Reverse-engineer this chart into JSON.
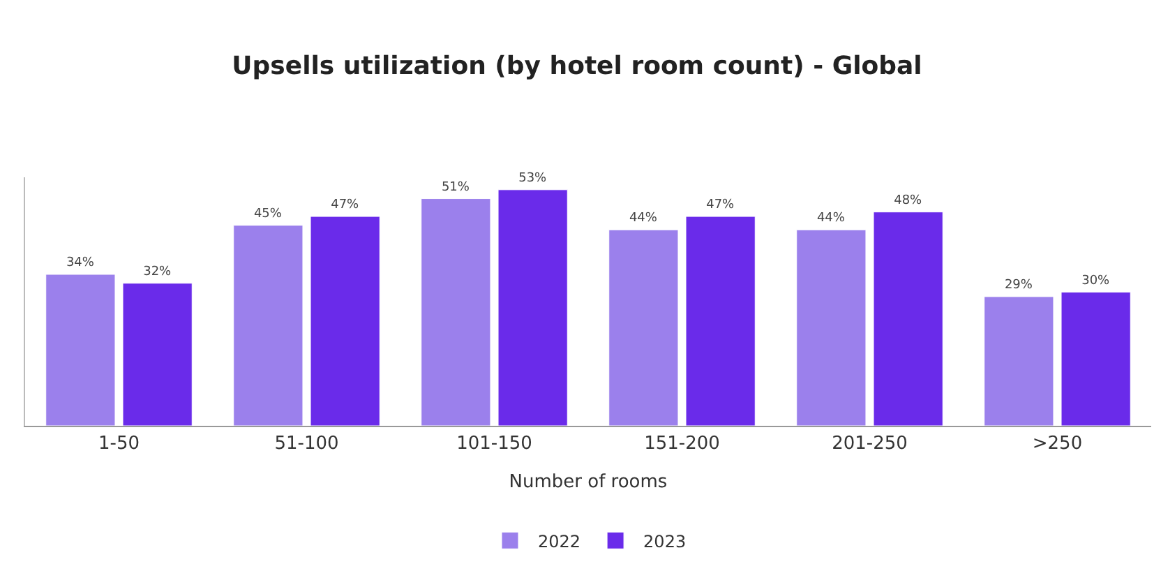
{
  "chart_data": {
    "type": "bar",
    "title": "Upsells utilization (by hotel room count) - Global",
    "xlabel": "Number of rooms",
    "categories": [
      "1-50",
      "51-100",
      "101-150",
      "151-200",
      "201-250",
      ">250"
    ],
    "series": [
      {
        "name": "2022",
        "color": "#9b80ec",
        "values": [
          34,
          45,
          51,
          44,
          44,
          29
        ],
        "value_labels": [
          "34%",
          "45%",
          "51%",
          "44%",
          "44%",
          "29%"
        ]
      },
      {
        "name": "2023",
        "color": "#6a2bea",
        "values": [
          32,
          47,
          53,
          47,
          48,
          30
        ],
        "value_labels": [
          "32%",
          "47%",
          "53%",
          "47%",
          "48%",
          "30%"
        ]
      }
    ],
    "grid": false,
    "legend": "bottom"
  }
}
